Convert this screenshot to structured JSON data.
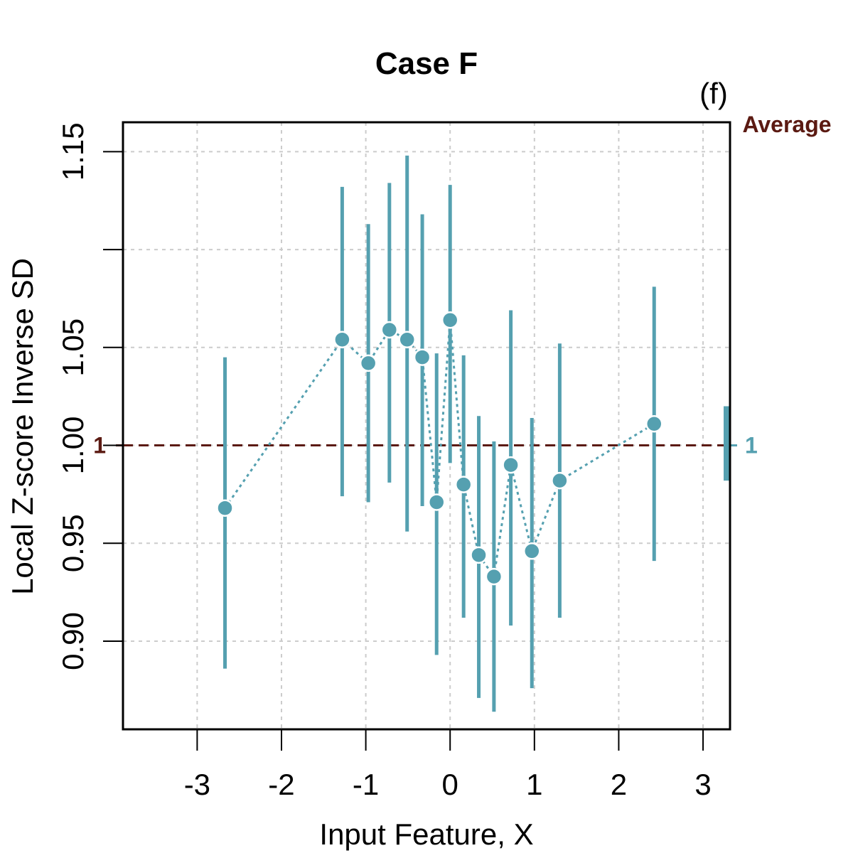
{
  "chart_data": {
    "type": "scatter",
    "title": "Case F",
    "panel_tag": "(f)",
    "xlabel": "Input Feature, X",
    "ylabel": "Local Z-score Inverse SD",
    "xlim": [
      -3.88,
      3.32
    ],
    "ylim": [
      0.855,
      1.165
    ],
    "x_ticks": [
      -3,
      -2,
      -1,
      0,
      1,
      2,
      3
    ],
    "x_tick_labels": [
      "-3",
      "-2",
      "-1",
      "0",
      "1",
      "2",
      "3"
    ],
    "y_ticks": [
      0.9,
      0.95,
      1.0,
      1.05,
      1.1,
      1.15
    ],
    "y_tick_labels": [
      "0.90",
      "0.95",
      "1.00",
      "1.05",
      "",
      "1.15"
    ],
    "grid": true,
    "series": [
      {
        "name": "Local Z-score Inverse SD",
        "points": [
          {
            "x": -2.67,
            "y": 0.968,
            "lo": 0.886,
            "hi": 1.045
          },
          {
            "x": -1.28,
            "y": 1.054,
            "lo": 0.974,
            "hi": 1.132
          },
          {
            "x": -0.97,
            "y": 1.042,
            "lo": 0.971,
            "hi": 1.113
          },
          {
            "x": -0.72,
            "y": 1.059,
            "lo": 0.981,
            "hi": 1.134
          },
          {
            "x": -0.51,
            "y": 1.054,
            "lo": 0.956,
            "hi": 1.148
          },
          {
            "x": -0.33,
            "y": 1.045,
            "lo": 0.969,
            "hi": 1.118
          },
          {
            "x": -0.16,
            "y": 0.971,
            "lo": 0.893,
            "hi": 1.047
          },
          {
            "x": 0.0,
            "y": 1.064,
            "lo": 0.991,
            "hi": 1.133
          },
          {
            "x": 0.16,
            "y": 0.98,
            "lo": 0.912,
            "hi": 1.046
          },
          {
            "x": 0.34,
            "y": 0.944,
            "lo": 0.871,
            "hi": 1.015
          },
          {
            "x": 0.52,
            "y": 0.933,
            "lo": 0.864,
            "hi": 1.002
          },
          {
            "x": 0.72,
            "y": 0.99,
            "lo": 0.908,
            "hi": 1.069
          },
          {
            "x": 0.97,
            "y": 0.946,
            "lo": 0.876,
            "hi": 1.014
          },
          {
            "x": 1.3,
            "y": 0.982,
            "lo": 0.912,
            "hi": 1.052
          },
          {
            "x": 2.42,
            "y": 1.011,
            "lo": 0.941,
            "hi": 1.081
          }
        ]
      }
    ],
    "reference_line": {
      "y": 1.0,
      "label": "1",
      "style": "dashed"
    },
    "average": {
      "title": "Average",
      "label": "1",
      "value": 1.0,
      "lo": 0.982,
      "hi": 1.02
    },
    "colors": {
      "series": "#55a0b0",
      "reference": "#5b1a12",
      "grid": "#cccccc",
      "axis": "#000000"
    }
  }
}
